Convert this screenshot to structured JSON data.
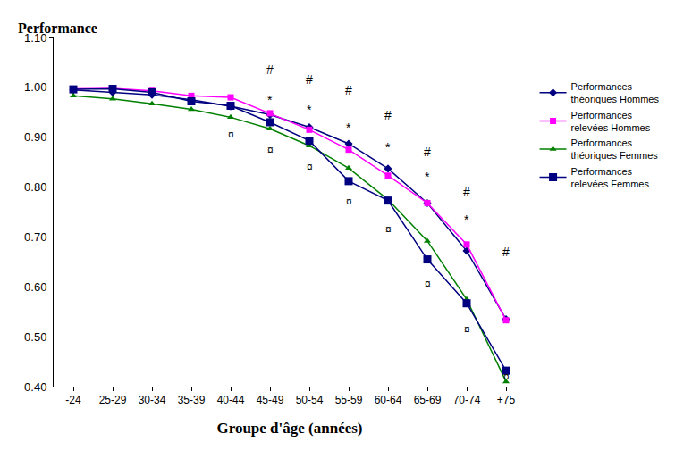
{
  "chart_data": {
    "type": "line",
    "y_label": "Performance",
    "x_label": "Groupe d'âge (années)",
    "categories": [
      "-24",
      "25-29",
      "30-34",
      "35-39",
      "40-44",
      "45-49",
      "50-54",
      "55-59",
      "60-64",
      "65-69",
      "70-74",
      "+75"
    ],
    "series": [
      {
        "name": "Performances théoriques Hommes",
        "color": "#000080",
        "marker": "diamond",
        "values": [
          0.995,
          0.99,
          0.985,
          0.975,
          0.962,
          0.945,
          0.92,
          0.887,
          0.837,
          0.768,
          0.672,
          0.535
        ]
      },
      {
        "name": "Performances relevées Hommes",
        "color": "#ff00ff",
        "marker": "square",
        "values": [
          0.997,
          0.998,
          0.993,
          0.983,
          0.98,
          0.948,
          0.915,
          0.875,
          0.823,
          0.768,
          0.685,
          0.533
        ]
      },
      {
        "name": "Performances théoriques Femmes",
        "color": "#008000",
        "marker": "triangle-up",
        "values": [
          0.983,
          0.977,
          0.967,
          0.956,
          0.94,
          0.917,
          0.883,
          0.838,
          0.775,
          0.692,
          0.575,
          0.41
        ]
      },
      {
        "name": "Performances relevées Femmes",
        "color": "#000080",
        "marker": "square",
        "values": [
          0.996,
          0.997,
          0.99,
          0.972,
          0.963,
          0.93,
          0.893,
          0.812,
          0.773,
          0.655,
          0.567,
          0.432
        ]
      }
    ],
    "ylim": [
      0.4,
      1.1
    ],
    "yticks": [
      {
        "value": 0.4,
        "label": "0.40"
      },
      {
        "value": 0.5,
        "label": "0.50"
      },
      {
        "value": 0.6,
        "label": "0.60"
      },
      {
        "value": 0.7,
        "label": "0.70"
      },
      {
        "value": 0.8,
        "label": "0.80"
      },
      {
        "value": 0.9,
        "label": "0.90"
      },
      {
        "value": 1.0,
        "label": "1.00"
      },
      {
        "value": 1.1,
        "label": "1.10"
      }
    ],
    "grid": false,
    "legend": "right",
    "annotations": [
      {
        "text": "#",
        "x": "45-49",
        "y": 1.035
      },
      {
        "text": "#",
        "x": "50-54",
        "y": 1.015
      },
      {
        "text": "#",
        "x": "55-59",
        "y": 0.995
      },
      {
        "text": "#",
        "x": "60-64",
        "y": 0.945
      },
      {
        "text": "#",
        "x": "65-69",
        "y": 0.87
      },
      {
        "text": "#",
        "x": "70-74",
        "y": 0.79
      },
      {
        "text": "#",
        "x": "+75",
        "y": 0.67
      },
      {
        "text": "*",
        "x": "45-49",
        "y": 0.975
      },
      {
        "text": "*",
        "x": "50-54",
        "y": 0.955
      },
      {
        "text": "*",
        "x": "55-59",
        "y": 0.92
      },
      {
        "text": "*",
        "x": "60-64",
        "y": 0.88
      },
      {
        "text": "*",
        "x": "65-69",
        "y": 0.82
      },
      {
        "text": "*",
        "x": "70-74",
        "y": 0.735
      },
      {
        "text": "¤",
        "x": "40-44",
        "y": 0.905
      },
      {
        "text": "¤",
        "x": "45-49",
        "y": 0.875
      },
      {
        "text": "¤",
        "x": "50-54",
        "y": 0.84
      },
      {
        "text": "¤",
        "x": "55-59",
        "y": 0.77
      },
      {
        "text": "¤",
        "x": "60-64",
        "y": 0.715
      },
      {
        "text": "¤",
        "x": "65-69",
        "y": 0.605
      },
      {
        "text": "¤",
        "x": "70-74",
        "y": 0.515
      },
      {
        "text": "¤",
        "x": "+75",
        "y": 0.42
      }
    ]
  }
}
